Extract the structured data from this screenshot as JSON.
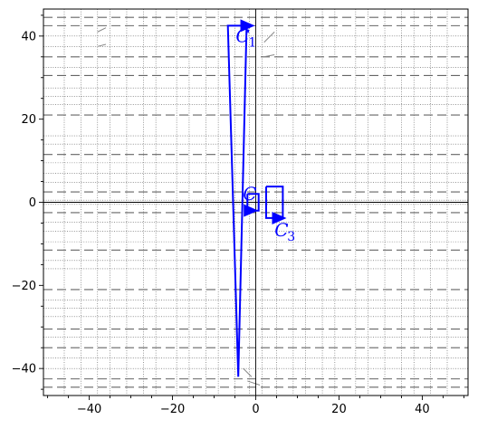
{
  "chart_data": {
    "type": "line",
    "title": "",
    "xlabel": "",
    "ylabel": "",
    "xlim": [
      -51,
      51
    ],
    "ylim": [
      -46.5,
      46.5
    ],
    "grid": true,
    "x_ticks": [
      -40,
      -20,
      0,
      20,
      40
    ],
    "y_ticks": [
      -40,
      -20,
      0,
      20,
      40
    ],
    "x_tick_labels": [
      "−40",
      "−20",
      "0",
      "20",
      "40"
    ],
    "y_tick_labels": [
      "−40",
      "−20",
      "0",
      "20",
      "40"
    ],
    "dashed_gridlines_y": [
      -44.5,
      -42.5,
      -35,
      -30.5,
      -21,
      -11.5,
      -2.5,
      2.5,
      11.5,
      21,
      30.5,
      35,
      42.5,
      44.5
    ],
    "dotted_gridlines_y": [
      -40,
      -37.5,
      -32.5,
      -27.5,
      -25.5,
      -23.5,
      -16,
      -14,
      -9.5,
      -7,
      -4.8,
      -0.5,
      0.5,
      4.8,
      7,
      9.5,
      14,
      16,
      23.5,
      25.5,
      27.5,
      32.5,
      37.5,
      40
    ],
    "dotted_gridlines_x": [
      -46,
      -42,
      -38,
      -35,
      -31,
      -27,
      -24,
      -19,
      -16,
      -12,
      -9,
      -5,
      -1.5,
      1.5,
      5,
      9,
      12,
      16,
      19,
      24,
      27,
      31,
      35,
      38,
      42,
      46
    ],
    "color": "#0000ff",
    "curves": [
      {
        "label": "C",
        "subscript": "1",
        "points": [
          [
            -4.2,
            -42
          ],
          [
            -6.7,
            42.5
          ],
          [
            -2.2,
            42.5
          ],
          [
            -4.2,
            -42
          ]
        ],
        "arrow_at": [
          -2.6,
          42.5
        ],
        "arrow_dir": "right",
        "label_at": [
          -4.8,
          38.5
        ]
      },
      {
        "label": "C",
        "subscript": "",
        "points": [
          [
            -2.0,
            2.0
          ],
          [
            0.7,
            2.0
          ],
          [
            0.7,
            -2.0
          ],
          [
            -2.0,
            -2.0
          ],
          [
            -2.0,
            2.0
          ]
        ],
        "arrow_at": [
          -1.8,
          -2.0
        ],
        "arrow_dir": "right",
        "label_at": [
          -3.1,
          0.5
        ]
      },
      {
        "label": "C",
        "subscript": "3",
        "points": [
          [
            2.5,
            3.8
          ],
          [
            6.5,
            3.8
          ],
          [
            6.5,
            -3.8
          ],
          [
            2.5,
            -3.8
          ],
          [
            2.5,
            3.8
          ]
        ],
        "arrow_at": [
          5.0,
          -3.8
        ],
        "arrow_dir": "right",
        "label_at": [
          4.5,
          -8.2
        ]
      }
    ],
    "slope_marks": [
      [
        -38,
        41,
        -36,
        42
      ],
      [
        -38,
        37.5,
        -36,
        38
      ],
      [
        2,
        38.5,
        4.5,
        41
      ],
      [
        2,
        35,
        4.5,
        35.5
      ],
      [
        -2,
        -43,
        1,
        -44
      ],
      [
        -3,
        -40,
        -1,
        -42
      ]
    ]
  }
}
